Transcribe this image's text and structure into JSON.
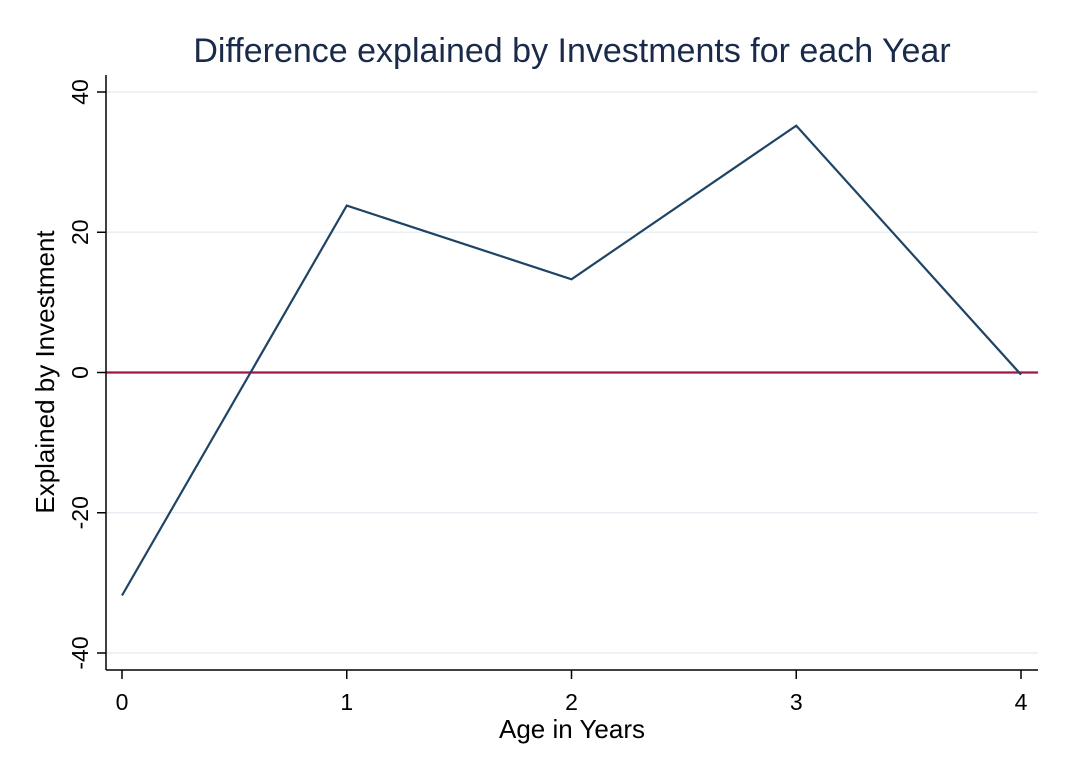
{
  "chart_data": {
    "type": "line",
    "title": "Difference explained by Investments for each Year",
    "xlabel": "Age in Years",
    "ylabel": "Explained by Investment",
    "xlim": [
      0,
      4
    ],
    "ylim": [
      -40,
      40
    ],
    "xticks": [
      0,
      1,
      2,
      3,
      4
    ],
    "yticks": [
      -40,
      -20,
      0,
      20,
      40
    ],
    "grid": true,
    "series": [
      {
        "x": [
          0,
          1,
          2,
          3,
          4
        ],
        "y": [
          -31.8,
          23.8,
          13.3,
          35.2,
          -0.3
        ],
        "color": "#1f4466"
      }
    ],
    "reference_line": {
      "y": 0,
      "color": "#a3154a"
    }
  }
}
